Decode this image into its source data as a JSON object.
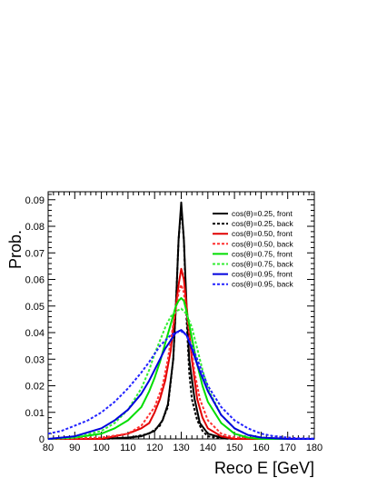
{
  "chart_data": {
    "type": "line",
    "title": "",
    "xlabel": "Reco E [GeV]",
    "ylabel": "Prob.",
    "xlim": [
      80,
      180
    ],
    "ylim": [
      0,
      0.093
    ],
    "grid": false,
    "legend_position": "top-right",
    "x_ticks": [
      "80",
      "90",
      "100",
      "110",
      "120",
      "130",
      "140",
      "150",
      "160",
      "170",
      "180"
    ],
    "y_ticks": [
      "0",
      "0.01",
      "0.02",
      "0.03",
      "0.04",
      "0.05",
      "0.06",
      "0.07",
      "0.08",
      "0.09"
    ],
    "series": [
      {
        "name": "cos(θ)=0.25, front",
        "color": "#000000",
        "dash": "solid",
        "points": [
          [
            80,
            0
          ],
          [
            100,
            0
          ],
          [
            110,
            0.0005
          ],
          [
            115,
            0.001
          ],
          [
            120,
            0.003
          ],
          [
            123,
            0.007
          ],
          [
            125,
            0.013
          ],
          [
            127,
            0.03
          ],
          [
            128,
            0.05
          ],
          [
            129,
            0.075
          ],
          [
            130,
            0.089
          ],
          [
            131,
            0.075
          ],
          [
            132,
            0.05
          ],
          [
            133,
            0.03
          ],
          [
            135,
            0.015
          ],
          [
            137,
            0.006
          ],
          [
            140,
            0.002
          ],
          [
            145,
            0.0005
          ],
          [
            150,
            0
          ],
          [
            180,
            0
          ]
        ]
      },
      {
        "name": "cos(θ)=0.25, back",
        "color": "#000000",
        "dash": "dashed",
        "points": [
          [
            80,
            0
          ],
          [
            100,
            0
          ],
          [
            110,
            0.0003
          ],
          [
            118,
            0.002
          ],
          [
            122,
            0.005
          ],
          [
            125,
            0.012
          ],
          [
            127,
            0.03
          ],
          [
            128,
            0.05
          ],
          [
            129,
            0.075
          ],
          [
            130,
            0.087
          ],
          [
            131,
            0.075
          ],
          [
            132,
            0.045
          ],
          [
            133,
            0.025
          ],
          [
            134,
            0.015
          ],
          [
            136,
            0.007
          ],
          [
            138,
            0.003
          ],
          [
            140,
            0.001
          ],
          [
            145,
            0.0002
          ],
          [
            150,
            0
          ],
          [
            180,
            0
          ]
        ]
      },
      {
        "name": "cos(θ)=0.50, front",
        "color": "#e00000",
        "dash": "solid",
        "points": [
          [
            80,
            0
          ],
          [
            100,
            0
          ],
          [
            110,
            0.002
          ],
          [
            115,
            0.004
          ],
          [
            118,
            0.006
          ],
          [
            120,
            0.01
          ],
          [
            122,
            0.015
          ],
          [
            124,
            0.022
          ],
          [
            126,
            0.033
          ],
          [
            128,
            0.05
          ],
          [
            129,
            0.058
          ],
          [
            130,
            0.064
          ],
          [
            131,
            0.06
          ],
          [
            132,
            0.05
          ],
          [
            134,
            0.03
          ],
          [
            136,
            0.015
          ],
          [
            138,
            0.008
          ],
          [
            140,
            0.004
          ],
          [
            145,
            0.001
          ],
          [
            150,
            0
          ],
          [
            180,
            0
          ]
        ]
      },
      {
        "name": "cos(θ)=0.50, back",
        "color": "#ff3030",
        "dash": "dashed",
        "points": [
          [
            80,
            0
          ],
          [
            100,
            0.0005
          ],
          [
            110,
            0.002
          ],
          [
            115,
            0.005
          ],
          [
            120,
            0.012
          ],
          [
            123,
            0.02
          ],
          [
            125,
            0.03
          ],
          [
            127,
            0.043
          ],
          [
            129,
            0.055
          ],
          [
            130,
            0.058
          ],
          [
            131,
            0.055
          ],
          [
            133,
            0.04
          ],
          [
            135,
            0.025
          ],
          [
            137,
            0.015
          ],
          [
            140,
            0.007
          ],
          [
            145,
            0.002
          ],
          [
            150,
            0.0005
          ],
          [
            180,
            0
          ]
        ]
      },
      {
        "name": "cos(θ)=0.75, front",
        "color": "#00dd00",
        "dash": "solid",
        "points": [
          [
            80,
            0
          ],
          [
            90,
            0.0005
          ],
          [
            100,
            0.002
          ],
          [
            105,
            0.004
          ],
          [
            110,
            0.007
          ],
          [
            115,
            0.012
          ],
          [
            118,
            0.018
          ],
          [
            120,
            0.023
          ],
          [
            122,
            0.029
          ],
          [
            124,
            0.036
          ],
          [
            126,
            0.043
          ],
          [
            128,
            0.05
          ],
          [
            129,
            0.052
          ],
          [
            130,
            0.053
          ],
          [
            131,
            0.052
          ],
          [
            132,
            0.048
          ],
          [
            134,
            0.038
          ],
          [
            136,
            0.028
          ],
          [
            138,
            0.02
          ],
          [
            140,
            0.014
          ],
          [
            145,
            0.006
          ],
          [
            150,
            0.002
          ],
          [
            155,
            0.0005
          ],
          [
            160,
            0
          ],
          [
            180,
            0
          ]
        ]
      },
      {
        "name": "cos(θ)=0.75, back",
        "color": "#33ee33",
        "dash": "dashed",
        "points": [
          [
            80,
            0
          ],
          [
            90,
            0.0005
          ],
          [
            100,
            0.003
          ],
          [
            105,
            0.006
          ],
          [
            110,
            0.011
          ],
          [
            115,
            0.019
          ],
          [
            118,
            0.026
          ],
          [
            120,
            0.032
          ],
          [
            122,
            0.037
          ],
          [
            124,
            0.042
          ],
          [
            126,
            0.046
          ],
          [
            128,
            0.048
          ],
          [
            130,
            0.049
          ],
          [
            132,
            0.047
          ],
          [
            134,
            0.042
          ],
          [
            136,
            0.034
          ],
          [
            138,
            0.026
          ],
          [
            140,
            0.019
          ],
          [
            145,
            0.009
          ],
          [
            150,
            0.004
          ],
          [
            155,
            0.0015
          ],
          [
            160,
            0.0005
          ],
          [
            170,
            0
          ],
          [
            180,
            0
          ]
        ]
      },
      {
        "name": "cos(θ)=0.95, front",
        "color": "#0000dd",
        "dash": "solid",
        "points": [
          [
            80,
            0
          ],
          [
            90,
            0.001
          ],
          [
            100,
            0.004
          ],
          [
            105,
            0.007
          ],
          [
            110,
            0.011
          ],
          [
            115,
            0.017
          ],
          [
            118,
            0.022
          ],
          [
            120,
            0.026
          ],
          [
            122,
            0.03
          ],
          [
            124,
            0.034
          ],
          [
            126,
            0.037
          ],
          [
            128,
            0.04
          ],
          [
            130,
            0.041
          ],
          [
            132,
            0.039
          ],
          [
            134,
            0.034
          ],
          [
            136,
            0.028
          ],
          [
            138,
            0.023
          ],
          [
            140,
            0.018
          ],
          [
            145,
            0.009
          ],
          [
            150,
            0.004
          ],
          [
            155,
            0.0015
          ],
          [
            160,
            0.0005
          ],
          [
            170,
            0
          ],
          [
            180,
            0
          ]
        ]
      },
      {
        "name": "cos(θ)=0.95, back",
        "color": "#2222ff",
        "dash": "dashed",
        "points": [
          [
            80,
            0.002
          ],
          [
            85,
            0.003
          ],
          [
            90,
            0.005
          ],
          [
            95,
            0.007
          ],
          [
            100,
            0.01
          ],
          [
            105,
            0.014
          ],
          [
            110,
            0.019
          ],
          [
            115,
            0.025
          ],
          [
            118,
            0.029
          ],
          [
            120,
            0.032
          ],
          [
            122,
            0.035
          ],
          [
            124,
            0.037
          ],
          [
            126,
            0.039
          ],
          [
            128,
            0.04
          ],
          [
            130,
            0.0405
          ],
          [
            132,
            0.039
          ],
          [
            134,
            0.035
          ],
          [
            136,
            0.03
          ],
          [
            138,
            0.025
          ],
          [
            140,
            0.02
          ],
          [
            145,
            0.012
          ],
          [
            150,
            0.007
          ],
          [
            155,
            0.004
          ],
          [
            160,
            0.002
          ],
          [
            165,
            0.001
          ],
          [
            170,
            0.0005
          ],
          [
            175,
            0.0002
          ],
          [
            180,
            0.0001
          ]
        ]
      }
    ]
  }
}
